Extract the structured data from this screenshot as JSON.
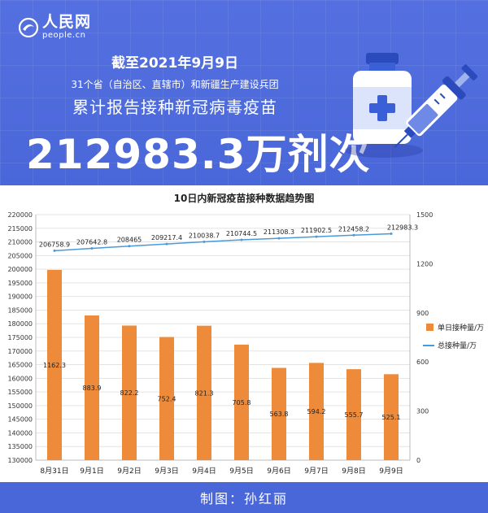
{
  "brand": {
    "name_cn": "人民网",
    "name_en": "people.cn",
    "logo_icon": "people-daily-logo"
  },
  "header": {
    "date_line": "截至2021年9月9日",
    "subtitle": "31个省（自治区、直辖市）和新疆生产建设兵团",
    "headline": "累计报告接种新冠病毒疫苗",
    "total": "212983.3万剂次",
    "illustration": [
      "vaccine-vial-icon",
      "syringe-icon"
    ]
  },
  "footer": {
    "credit": "制图：孙红丽"
  },
  "colors": {
    "bar": "#ee8b3a",
    "line": "#4a9ad9",
    "brand_bg": "#4a67d9"
  },
  "chart_data": {
    "type": "bar",
    "title": "10日内新冠疫苗接种数据趋势图",
    "categories": [
      "8月31日",
      "9月1日",
      "9月2日",
      "9月3日",
      "9月4日",
      "9月5日",
      "9月6日",
      "9月7日",
      "9月8日",
      "9月9日"
    ],
    "series": [
      {
        "name": "单日接种量/万",
        "type": "bar",
        "axis": "right",
        "values": [
          1162.3,
          883.9,
          822.2,
          752.4,
          821.3,
          705.8,
          563.8,
          594.2,
          555.7,
          525.1
        ],
        "labels": [
          "1162.3",
          "883.9",
          "822.2",
          "752.4",
          "821.3",
          "705.8",
          "563.8",
          "594.2",
          "555.7",
          "525.1"
        ]
      },
      {
        "name": "总接种量/万",
        "type": "line",
        "axis": "left",
        "values": [
          206758.9,
          207642.8,
          208465,
          209217.4,
          210038.7,
          210744.5,
          211308.3,
          211902.5,
          212458.2,
          212983.3
        ],
        "labels": [
          "206758.9",
          "207642.8",
          "208465",
          "209217.4",
          "210038.7",
          "210744.5",
          "211308.3",
          "211902.5",
          "212458.2",
          "212983.3"
        ]
      }
    ],
    "left_axis": {
      "min": 130000,
      "max": 220000,
      "step": 5000,
      "ticks": [
        "130000",
        "135000",
        "140000",
        "145000",
        "150000",
        "155000",
        "160000",
        "165000",
        "170000",
        "175000",
        "180000",
        "185000",
        "190000",
        "195000",
        "200000",
        "205000",
        "210000",
        "215000",
        "220000"
      ]
    },
    "right_axis": {
      "min": 0,
      "max": 1500,
      "step": 300,
      "ticks": [
        "0",
        "300",
        "600",
        "900",
        "1200",
        "1500"
      ]
    },
    "grid": true,
    "legend_position": "right"
  }
}
